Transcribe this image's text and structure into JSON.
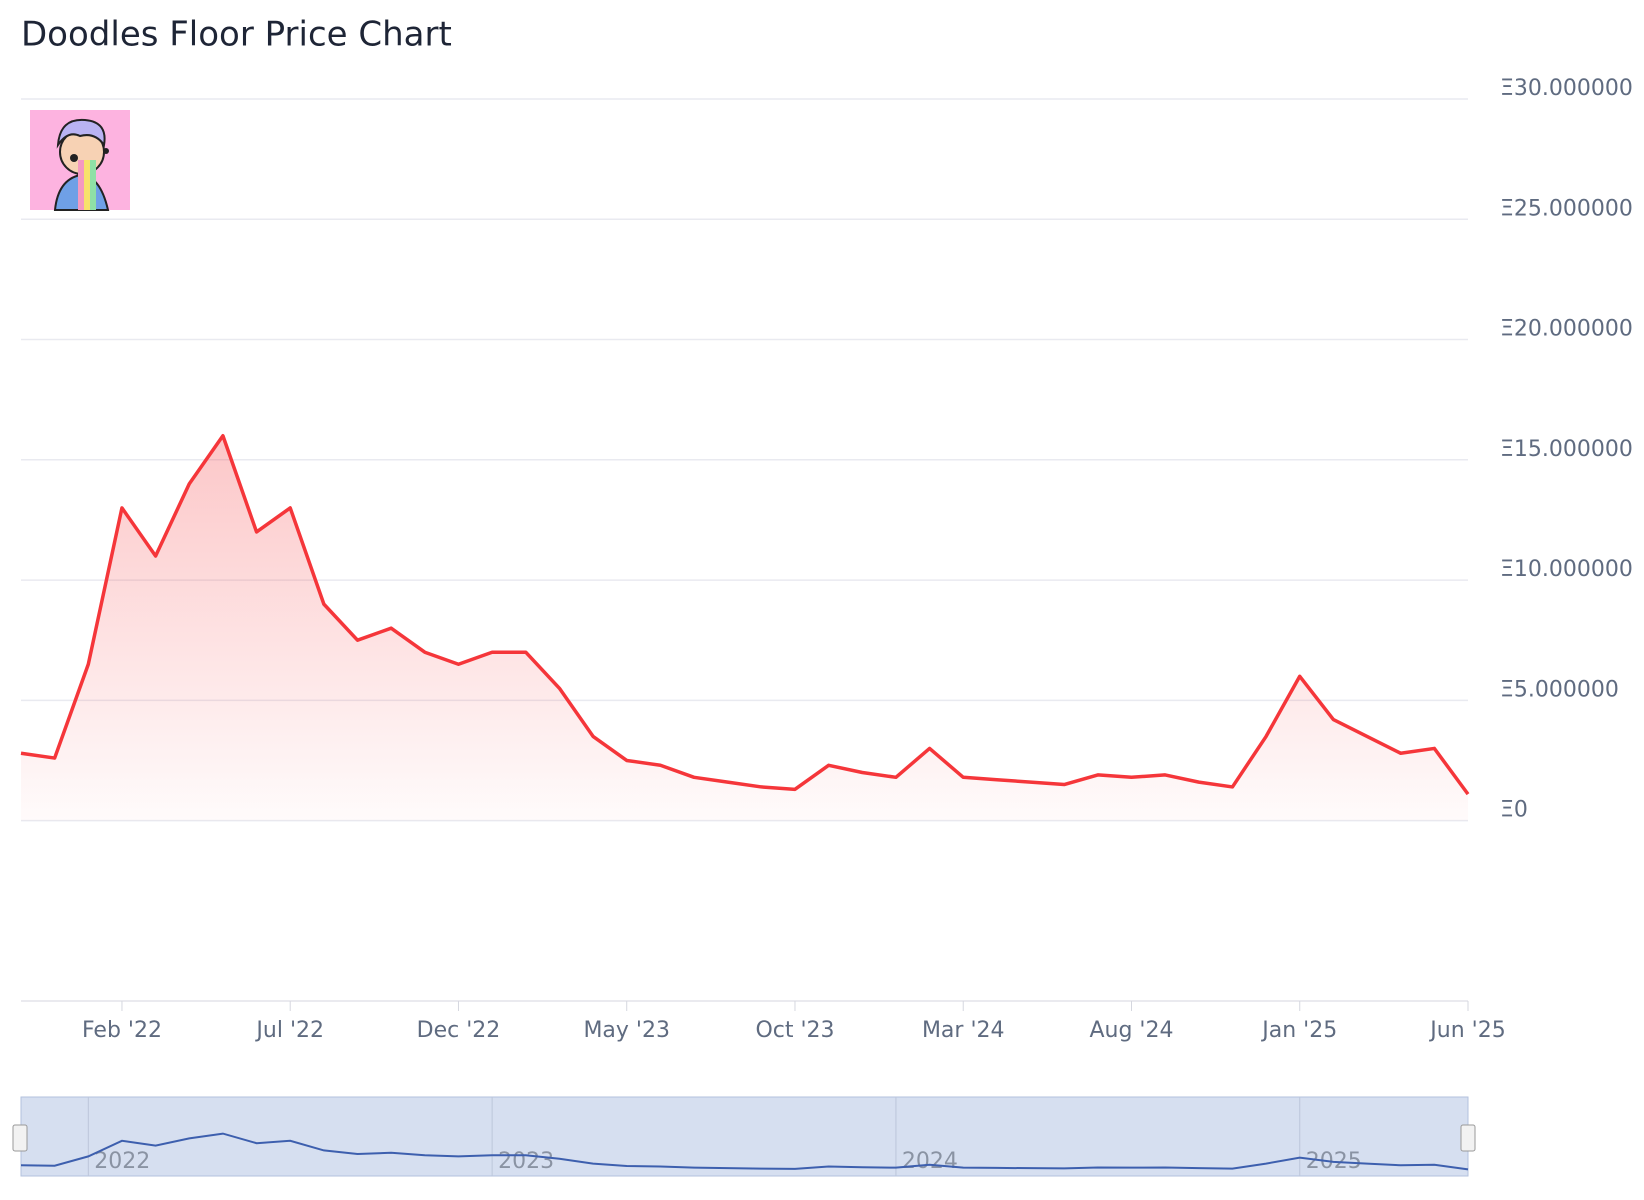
{
  "chart_data": {
    "type": "line",
    "title": "Doodles Floor Price Chart",
    "x": [
      "2021-11",
      "2021-12",
      "2022-01",
      "2022-02",
      "2022-03",
      "2022-04",
      "2022-05",
      "2022-06",
      "2022-07",
      "2022-08",
      "2022-09",
      "2022-10",
      "2022-11",
      "2022-12",
      "2023-01",
      "2023-02",
      "2023-03",
      "2023-04",
      "2023-05",
      "2023-06",
      "2023-07",
      "2023-08",
      "2023-09",
      "2023-10",
      "2023-11",
      "2023-12",
      "2024-01",
      "2024-02",
      "2024-03",
      "2024-04",
      "2024-05",
      "2024-06",
      "2024-07",
      "2024-08",
      "2024-09",
      "2024-10",
      "2024-11",
      "2024-12",
      "2025-01",
      "2025-02",
      "2025-03",
      "2025-04",
      "2025-05",
      "2025-06"
    ],
    "values": [
      2.8,
      2.6,
      6.5,
      13,
      11,
      14,
      16,
      12,
      13,
      9,
      7.5,
      8,
      7,
      6.5,
      7,
      7,
      5.5,
      3.5,
      2.5,
      2.3,
      1.8,
      1.6,
      1.4,
      1.3,
      2.3,
      2.0,
      1.8,
      3.0,
      1.8,
      1.7,
      1.6,
      1.5,
      1.9,
      1.8,
      1.9,
      1.6,
      1.4,
      3.5,
      6.0,
      4.2,
      3.5,
      2.8,
      3.0,
      1.1
    ],
    "color": "#f5363a",
    "xlim": [
      "2021-11",
      "2025-06"
    ],
    "xticks": [
      {
        "value": "2022-02",
        "label": "Feb '22"
      },
      {
        "value": "2022-07",
        "label": "Jul '22"
      },
      {
        "value": "2022-12",
        "label": "Dec '22"
      },
      {
        "value": "2023-05",
        "label": "May '23"
      },
      {
        "value": "2023-10",
        "label": "Oct '23"
      },
      {
        "value": "2024-03",
        "label": "Mar '24"
      },
      {
        "value": "2024-08",
        "label": "Aug '24"
      },
      {
        "value": "2025-01",
        "label": "Jan '25"
      },
      {
        "value": "2025-06",
        "label": "Jun '25"
      }
    ],
    "ylim": [
      -7.5,
      30
    ],
    "yticks": [
      {
        "value": 0,
        "label": "Ξ0"
      },
      {
        "value": 5,
        "label": "Ξ5.000000"
      },
      {
        "value": 10,
        "label": "Ξ10.000000"
      },
      {
        "value": 15,
        "label": "Ξ15.000000"
      },
      {
        "value": 20,
        "label": "Ξ20.000000"
      },
      {
        "value": 25,
        "label": "Ξ25.000000"
      },
      {
        "value": 30,
        "label": "Ξ30.000000"
      }
    ],
    "grid": true,
    "navigator_color": "#3d5fae",
    "navigator_ticks": [
      {
        "value": "2022-01",
        "label": "2022"
      },
      {
        "value": "2023-01",
        "label": "2023"
      },
      {
        "value": "2024-01",
        "label": "2024"
      },
      {
        "value": "2025-01",
        "label": "2025"
      }
    ]
  }
}
